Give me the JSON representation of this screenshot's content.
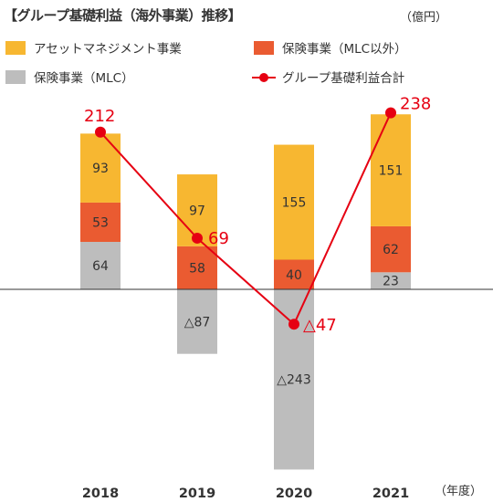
{
  "title": "【グループ基礎利益（海外事業）推移】",
  "unit": "（億円）",
  "x_unit": "（年度）",
  "colors": {
    "asset": "#F7B731",
    "hoken_excl": "#EA5B31",
    "mlc": "#BDBDBD",
    "total": "#E60012"
  },
  "legend": [
    {
      "label": "アセットマネジメント事業",
      "kind": "bar",
      "key": "asset"
    },
    {
      "label": "保険事業（MLC以外）",
      "kind": "bar",
      "key": "hoken_excl"
    },
    {
      "label": "保険事業（MLC）",
      "kind": "bar",
      "key": "mlc"
    },
    {
      "label": "グループ基礎利益合計",
      "kind": "line",
      "key": "total"
    }
  ],
  "chart_data": {
    "type": "bar",
    "stacked": true,
    "categories": [
      "2018",
      "2019",
      "2020",
      "2021"
    ],
    "series": [
      {
        "name": "保険事業（MLC）",
        "key": "mlc",
        "values": [
          64,
          -87,
          -243,
          23
        ],
        "labels": [
          "64",
          "△87",
          "△243",
          "23"
        ]
      },
      {
        "name": "保険事業（MLC以外）",
        "key": "hoken_excl",
        "values": [
          53,
          58,
          40,
          62
        ],
        "labels": [
          "53",
          "58",
          "40",
          "62"
        ]
      },
      {
        "name": "アセットマネジメント事業",
        "key": "asset",
        "values": [
          93,
          97,
          155,
          151
        ],
        "labels": [
          "93",
          "97",
          "155",
          "151"
        ]
      }
    ],
    "line": {
      "name": "グループ基礎利益合計",
      "key": "total",
      "values": [
        212,
        69,
        -47,
        238
      ],
      "labels": [
        "212",
        "69",
        "△47",
        "238"
      ]
    },
    "ylim": [
      -300,
      300
    ]
  }
}
